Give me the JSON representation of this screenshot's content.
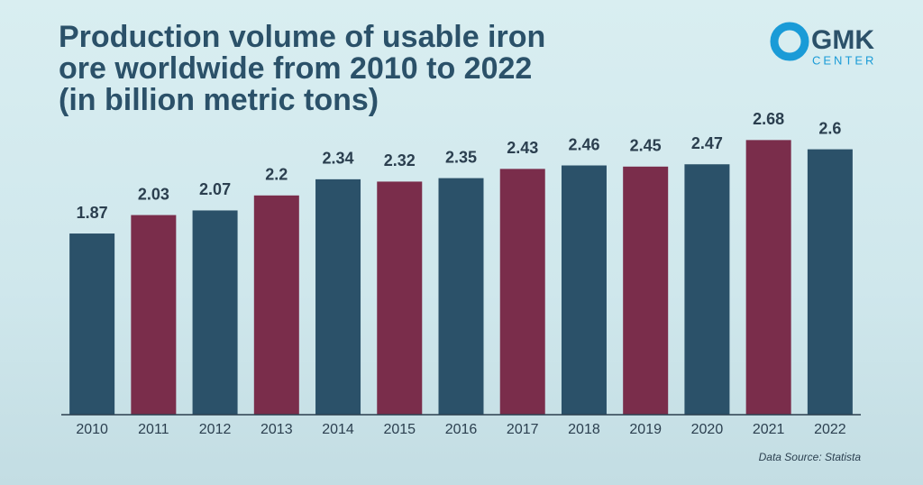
{
  "chart_data": {
    "type": "bar",
    "title": "Production volume of usable iron\nore worldwide from 2010 to 2022\n(in billion metric tons)",
    "categories": [
      "2010",
      "2011",
      "2012",
      "2013",
      "2014",
      "2015",
      "2016",
      "2017",
      "2018",
      "2019",
      "2020",
      "2021",
      "2022"
    ],
    "values": [
      1.87,
      2.03,
      2.07,
      2.2,
      2.34,
      2.32,
      2.35,
      2.43,
      2.46,
      2.45,
      2.47,
      2.68,
      2.6
    ],
    "colors": [
      "#2b5169",
      "#7a2d4b",
      "#2b5169",
      "#7a2d4b",
      "#2b5169",
      "#7a2d4b",
      "#2b5169",
      "#7a2d4b",
      "#2b5169",
      "#7a2d4b",
      "#2b5169",
      "#7a2d4b",
      "#2b5169"
    ],
    "ylim": [
      0.3,
      2.8
    ],
    "source": "Data Source: Statista"
  },
  "logo": {
    "name": "GMK",
    "subtitle": "CENTER"
  }
}
